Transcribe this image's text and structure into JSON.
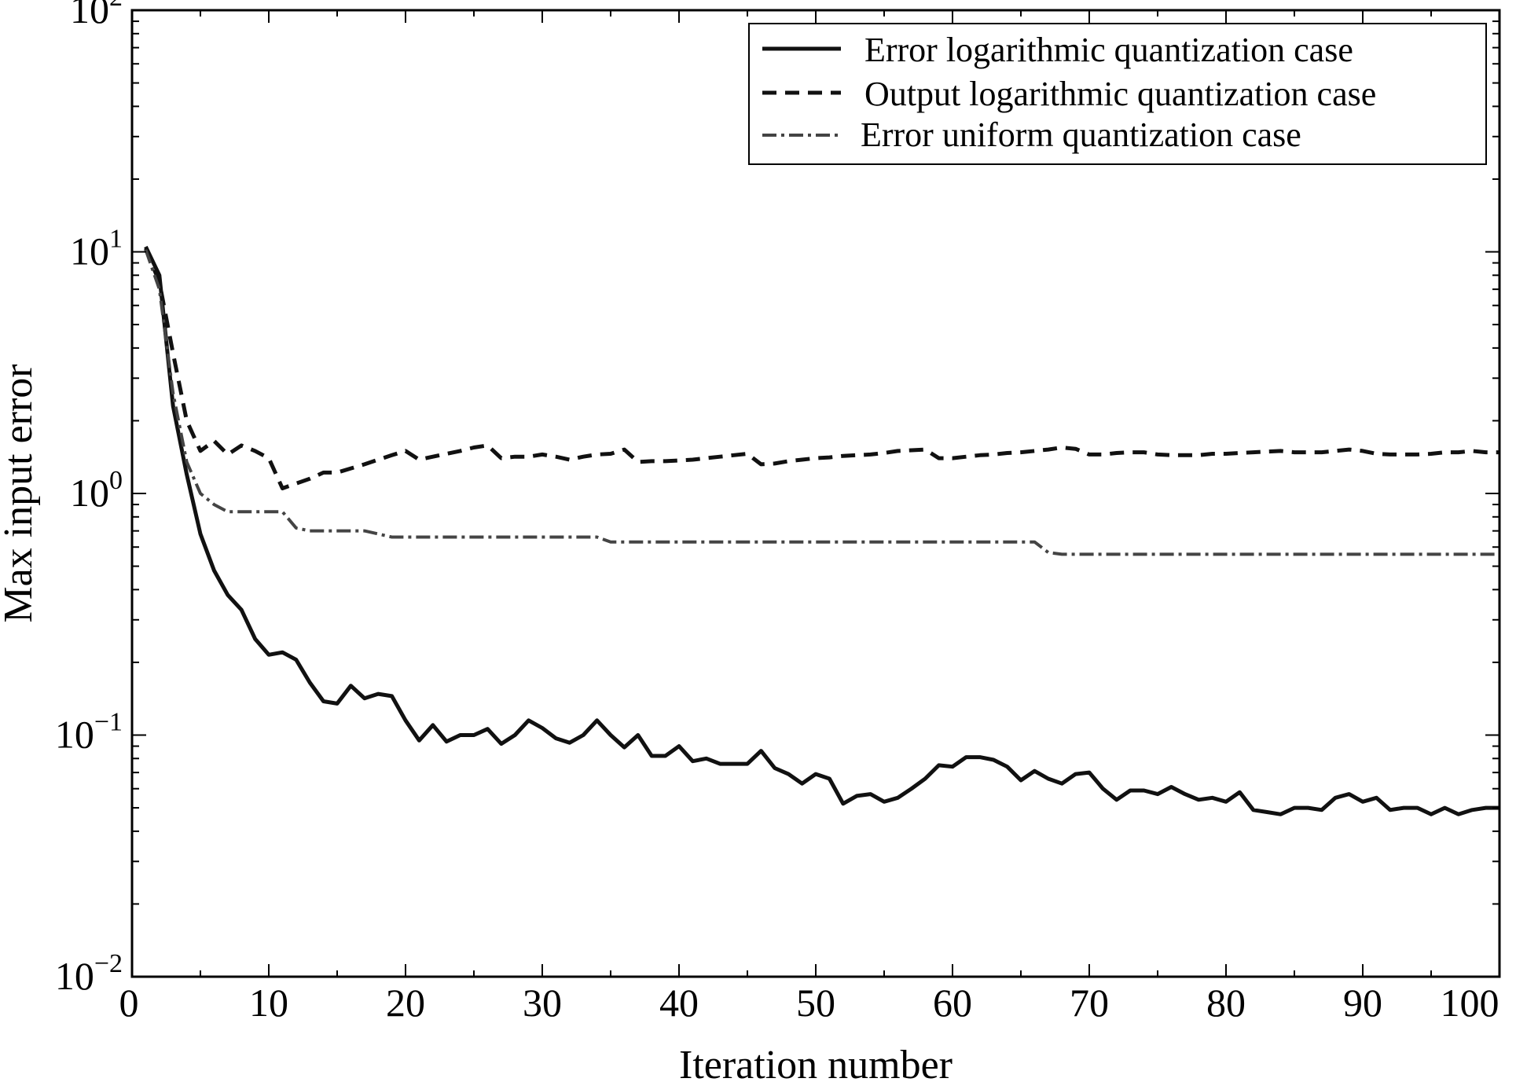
{
  "chart_data": {
    "type": "line",
    "title": "",
    "xlabel": "Iteration number",
    "ylabel": "Max input error",
    "xlim": [
      0,
      100
    ],
    "ylim": [
      0.01,
      100
    ],
    "yscale": "log",
    "grid": false,
    "legend_position": "top-right",
    "x_ticks": [
      "0",
      "10",
      "20",
      "30",
      "40",
      "50",
      "60",
      "70",
      "80",
      "90",
      "100"
    ],
    "y_ticks": [
      {
        "base": "10",
        "exp": "2",
        "value": 100
      },
      {
        "base": "10",
        "exp": "1",
        "value": 10
      },
      {
        "base": "10",
        "exp": "0",
        "value": 1
      },
      {
        "base": "10",
        "exp": "−1",
        "value": 0.1
      },
      {
        "base": "10",
        "exp": "−2",
        "value": 0.01
      }
    ],
    "series": [
      {
        "name": "Error logarithmic quantization case",
        "style": "solid",
        "color": "#111111",
        "x": [
          1,
          2,
          3,
          4,
          5,
          6,
          7,
          8,
          9,
          10,
          11,
          12,
          13,
          14,
          15,
          16,
          17,
          18,
          19,
          20,
          21,
          22,
          23,
          24,
          25,
          26,
          27,
          28,
          29,
          30,
          31,
          32,
          33,
          34,
          35,
          36,
          37,
          38,
          39,
          40,
          41,
          42,
          43,
          44,
          45,
          46,
          47,
          48,
          49,
          50,
          51,
          52,
          53,
          54,
          55,
          56,
          57,
          58,
          59,
          60,
          61,
          62,
          63,
          64,
          65,
          66,
          67,
          68,
          69,
          70,
          71,
          72,
          73,
          74,
          75,
          76,
          77,
          78,
          79,
          80,
          81,
          82,
          83,
          84,
          85,
          86,
          87,
          88,
          89,
          90,
          91,
          92,
          93,
          94,
          95,
          96,
          97,
          98,
          99,
          100
        ],
        "y": [
          10.5,
          8.0,
          2.3,
          1.2,
          0.68,
          0.48,
          0.38,
          0.33,
          0.25,
          0.215,
          0.22,
          0.205,
          0.165,
          0.138,
          0.135,
          0.16,
          0.142,
          0.148,
          0.145,
          0.115,
          0.095,
          0.11,
          0.094,
          0.1,
          0.1,
          0.106,
          0.092,
          0.1,
          0.115,
          0.107,
          0.097,
          0.093,
          0.1,
          0.115,
          0.1,
          0.089,
          0.1,
          0.082,
          0.082,
          0.09,
          0.078,
          0.08,
          0.076,
          0.076,
          0.076,
          0.086,
          0.073,
          0.069,
          0.063,
          0.069,
          0.066,
          0.052,
          0.056,
          0.057,
          0.053,
          0.055,
          0.06,
          0.066,
          0.075,
          0.074,
          0.081,
          0.081,
          0.079,
          0.074,
          0.065,
          0.071,
          0.066,
          0.063,
          0.069,
          0.07,
          0.06,
          0.054,
          0.059,
          0.059,
          0.057,
          0.061,
          0.057,
          0.054,
          0.055,
          0.053,
          0.058,
          0.049,
          0.048,
          0.047,
          0.05,
          0.05,
          0.049,
          0.055,
          0.057,
          0.053,
          0.055,
          0.049,
          0.05,
          0.05,
          0.047,
          0.05,
          0.047,
          0.049,
          0.05,
          0.05
        ]
      },
      {
        "name": "Output logarithmic quantization case",
        "style": "dashed",
        "color": "#111111",
        "x": [
          1,
          2,
          3,
          4,
          5,
          6,
          7,
          8,
          9,
          10,
          11,
          12,
          13,
          14,
          15,
          16,
          17,
          18,
          19,
          20,
          21,
          22,
          23,
          24,
          25,
          26,
          27,
          28,
          29,
          30,
          31,
          32,
          33,
          34,
          35,
          36,
          37,
          38,
          39,
          40,
          41,
          42,
          43,
          44,
          45,
          46,
          47,
          48,
          49,
          50,
          51,
          52,
          53,
          54,
          55,
          56,
          57,
          58,
          59,
          60,
          61,
          62,
          63,
          64,
          65,
          66,
          67,
          68,
          69,
          70,
          71,
          72,
          73,
          74,
          75,
          76,
          77,
          78,
          79,
          80,
          81,
          82,
          83,
          84,
          85,
          86,
          87,
          88,
          89,
          90,
          91,
          92,
          93,
          94,
          95,
          96,
          97,
          98,
          99,
          100
        ],
        "y": [
          10.3,
          7.5,
          3.8,
          2.0,
          1.5,
          1.65,
          1.45,
          1.58,
          1.5,
          1.4,
          1.05,
          1.1,
          1.15,
          1.22,
          1.22,
          1.27,
          1.32,
          1.38,
          1.44,
          1.5,
          1.38,
          1.42,
          1.46,
          1.5,
          1.55,
          1.58,
          1.4,
          1.42,
          1.42,
          1.45,
          1.42,
          1.38,
          1.42,
          1.45,
          1.46,
          1.52,
          1.35,
          1.36,
          1.36,
          1.37,
          1.38,
          1.4,
          1.42,
          1.44,
          1.46,
          1.32,
          1.33,
          1.36,
          1.38,
          1.4,
          1.41,
          1.43,
          1.44,
          1.45,
          1.47,
          1.5,
          1.51,
          1.52,
          1.4,
          1.4,
          1.42,
          1.44,
          1.45,
          1.47,
          1.48,
          1.5,
          1.52,
          1.55,
          1.53,
          1.45,
          1.45,
          1.47,
          1.48,
          1.48,
          1.45,
          1.44,
          1.44,
          1.44,
          1.46,
          1.46,
          1.47,
          1.48,
          1.49,
          1.5,
          1.48,
          1.48,
          1.48,
          1.5,
          1.52,
          1.5,
          1.46,
          1.45,
          1.45,
          1.45,
          1.46,
          1.48,
          1.48,
          1.5,
          1.48,
          1.48
        ]
      },
      {
        "name": "Error uniform quantization case",
        "style": "dashdot",
        "color": "#444444",
        "x": [
          1,
          2,
          3,
          4,
          5,
          6,
          7,
          8,
          9,
          10,
          11,
          12,
          13,
          14,
          15,
          16,
          17,
          18,
          19,
          20,
          21,
          22,
          23,
          24,
          25,
          26,
          27,
          28,
          29,
          30,
          31,
          32,
          33,
          34,
          35,
          36,
          37,
          38,
          39,
          40,
          41,
          42,
          43,
          44,
          45,
          46,
          47,
          48,
          49,
          50,
          51,
          52,
          53,
          54,
          55,
          56,
          57,
          58,
          59,
          60,
          61,
          62,
          63,
          64,
          65,
          66,
          67,
          68,
          69,
          70,
          71,
          72,
          73,
          74,
          75,
          76,
          77,
          78,
          79,
          80,
          81,
          82,
          83,
          84,
          85,
          86,
          87,
          88,
          89,
          90,
          91,
          92,
          93,
          94,
          95,
          96,
          97,
          98,
          99,
          100
        ],
        "y": [
          10.2,
          7.0,
          2.6,
          1.35,
          1.0,
          0.9,
          0.84,
          0.84,
          0.84,
          0.84,
          0.84,
          0.72,
          0.7,
          0.7,
          0.7,
          0.7,
          0.7,
          0.68,
          0.66,
          0.66,
          0.66,
          0.66,
          0.66,
          0.66,
          0.66,
          0.66,
          0.66,
          0.66,
          0.66,
          0.66,
          0.66,
          0.66,
          0.66,
          0.66,
          0.63,
          0.63,
          0.63,
          0.63,
          0.63,
          0.63,
          0.63,
          0.63,
          0.63,
          0.63,
          0.63,
          0.63,
          0.63,
          0.63,
          0.63,
          0.63,
          0.63,
          0.63,
          0.63,
          0.63,
          0.63,
          0.63,
          0.63,
          0.63,
          0.63,
          0.63,
          0.63,
          0.63,
          0.63,
          0.63,
          0.63,
          0.63,
          0.57,
          0.56,
          0.56,
          0.56,
          0.56,
          0.56,
          0.56,
          0.56,
          0.56,
          0.56,
          0.56,
          0.56,
          0.56,
          0.56,
          0.56,
          0.56,
          0.56,
          0.56,
          0.56,
          0.56,
          0.56,
          0.56,
          0.56,
          0.56,
          0.56,
          0.56,
          0.56,
          0.56,
          0.56,
          0.56,
          0.56,
          0.56,
          0.56,
          0.56
        ]
      }
    ]
  }
}
